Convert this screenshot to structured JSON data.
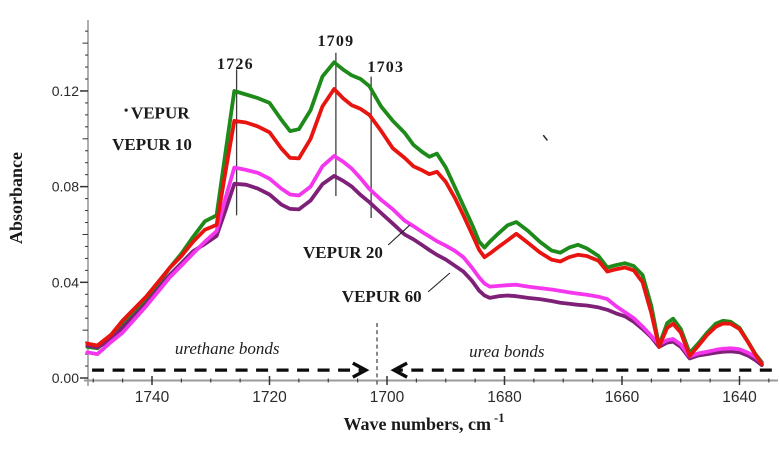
{
  "figure": {
    "background": "#ffffff",
    "axis_color": "#9b9b9b",
    "tick_color": "#333333",
    "text_color": "#1a1a1a"
  },
  "chart_data": {
    "type": "line",
    "title": "",
    "xlabel": {
      "text": "Wave numbers, cm",
      "superscript": "-1"
    },
    "ylabel": "Absorbance",
    "x_axis": {
      "reversed": true,
      "range": [
        1751,
        1633.5
      ],
      "major_ticks": [
        1740,
        1720,
        1700,
        1680,
        1660,
        1640
      ],
      "minor_step": 5
    },
    "y_axis": {
      "range": [
        0,
        0.148
      ],
      "major_ticks": [
        0,
        0.04,
        0.08,
        0.12
      ],
      "major_tick_labels": [
        "0.00",
        "0.04",
        "0.08",
        "0.12"
      ],
      "minor_step": 0.005,
      "grid": false
    },
    "legend": "inline curve labels",
    "x": [
      1751,
      1749.3,
      1747,
      1745,
      1743,
      1741,
      1739,
      1737,
      1735,
      1733,
      1731,
      1729,
      1727.5,
      1726,
      1724,
      1722,
      1720,
      1718,
      1716.5,
      1715,
      1713,
      1711,
      1709,
      1707.5,
      1706,
      1704.5,
      1703,
      1701,
      1699,
      1697,
      1695.5,
      1694,
      1692.8,
      1691.5,
      1690,
      1688.5,
      1687,
      1685.5,
      1684.3,
      1683.4,
      1682.5,
      1681,
      1679.5,
      1678,
      1676,
      1674,
      1672,
      1670.5,
      1669,
      1667.5,
      1666,
      1664,
      1662.5,
      1661,
      1659.5,
      1658,
      1656.5,
      1655,
      1653.7,
      1652.3,
      1651.3,
      1650,
      1648.5,
      1647,
      1645.5,
      1644,
      1642.8,
      1641.5,
      1640,
      1638.5,
      1637.3,
      1636.2
    ],
    "series": [
      {
        "name": "VEPUR",
        "color": "#1e8a1a",
        "values": [
          0.013,
          0.0124,
          0.017,
          0.022,
          0.027,
          0.033,
          0.039,
          0.046,
          0.052,
          0.059,
          0.0655,
          0.068,
          0.094,
          0.12,
          0.1185,
          0.117,
          0.115,
          0.108,
          0.1032,
          0.104,
          0.112,
          0.126,
          0.132,
          0.129,
          0.1265,
          0.125,
          0.122,
          0.1135,
          0.1075,
          0.1025,
          0.0975,
          0.0945,
          0.0925,
          0.0938,
          0.088,
          0.08,
          0.072,
          0.064,
          0.057,
          0.0545,
          0.057,
          0.0605,
          0.0638,
          0.0652,
          0.0615,
          0.057,
          0.0533,
          0.0524,
          0.0545,
          0.0557,
          0.0542,
          0.051,
          0.0462,
          0.0472,
          0.048,
          0.0468,
          0.043,
          0.03,
          0.0136,
          0.023,
          0.0248,
          0.0205,
          0.0105,
          0.0145,
          0.019,
          0.0228,
          0.0239,
          0.0235,
          0.021,
          0.015,
          0.01,
          0.0066
        ]
      },
      {
        "name": "VEPUR 10",
        "color": "#e81410",
        "values": [
          0.0144,
          0.0136,
          0.018,
          0.024,
          0.029,
          0.034,
          0.04,
          0.046,
          0.051,
          0.057,
          0.062,
          0.064,
          0.086,
          0.1075,
          0.1068,
          0.1052,
          0.1027,
          0.096,
          0.092,
          0.0918,
          0.1,
          0.1135,
          0.1208,
          0.117,
          0.114,
          0.1125,
          0.11,
          0.1033,
          0.096,
          0.092,
          0.0885,
          0.0868,
          0.0852,
          0.0862,
          0.082,
          0.0755,
          0.068,
          0.06,
          0.0535,
          0.0505,
          0.052,
          0.0548,
          0.0575,
          0.0603,
          0.0565,
          0.0525,
          0.0495,
          0.0487,
          0.0505,
          0.0515,
          0.051,
          0.049,
          0.0445,
          0.0455,
          0.0462,
          0.045,
          0.04,
          0.027,
          0.013,
          0.021,
          0.0227,
          0.019,
          0.0092,
          0.0135,
          0.018,
          0.0215,
          0.0228,
          0.0227,
          0.0205,
          0.0148,
          0.0098,
          0.0058
        ]
      },
      {
        "name": "VEPUR 20",
        "color": "#f437ef",
        "values": [
          0.0107,
          0.01,
          0.015,
          0.019,
          0.0245,
          0.03,
          0.036,
          0.042,
          0.047,
          0.052,
          0.057,
          0.0614,
          0.075,
          0.088,
          0.087,
          0.0858,
          0.0833,
          0.0792,
          0.0767,
          0.0763,
          0.08,
          0.0885,
          0.0928,
          0.0905,
          0.0875,
          0.0835,
          0.079,
          0.0745,
          0.0705,
          0.0658,
          0.0635,
          0.061,
          0.0592,
          0.0572,
          0.0553,
          0.0532,
          0.0505,
          0.046,
          0.042,
          0.0395,
          0.0382,
          0.0385,
          0.0388,
          0.039,
          0.0382,
          0.0376,
          0.037,
          0.0364,
          0.0358,
          0.0353,
          0.0348,
          0.034,
          0.033,
          0.03,
          0.0275,
          0.025,
          0.0215,
          0.0175,
          0.014,
          0.0158,
          0.0163,
          0.014,
          0.009,
          0.0103,
          0.011,
          0.0118,
          0.0122,
          0.0124,
          0.012,
          0.0105,
          0.0088,
          0.0062
        ]
      },
      {
        "name": "VEPUR 60",
        "color": "#7e2077",
        "values": [
          0.0136,
          0.0128,
          0.016,
          0.021,
          0.026,
          0.031,
          0.037,
          0.043,
          0.048,
          0.053,
          0.056,
          0.0594,
          0.07,
          0.0812,
          0.0808,
          0.0792,
          0.0767,
          0.0725,
          0.0707,
          0.0705,
          0.0742,
          0.081,
          0.0845,
          0.0825,
          0.08,
          0.0765,
          0.0735,
          0.069,
          0.0645,
          0.06,
          0.058,
          0.0555,
          0.0535,
          0.0515,
          0.0495,
          0.047,
          0.0445,
          0.0405,
          0.0365,
          0.0345,
          0.0335,
          0.0342,
          0.0345,
          0.0342,
          0.0335,
          0.033,
          0.0322,
          0.0315,
          0.031,
          0.0306,
          0.0303,
          0.0295,
          0.0285,
          0.027,
          0.0258,
          0.0235,
          0.0205,
          0.017,
          0.013,
          0.0148,
          0.0152,
          0.013,
          0.0082,
          0.0094,
          0.01,
          0.0106,
          0.011,
          0.0111,
          0.0108,
          0.0093,
          0.0075,
          0.0054
        ]
      }
    ],
    "series_labels": [
      {
        "text": "VEPUR",
        "w": 1738.6,
        "abs": 0.111
      },
      {
        "text": "VEPUR 10",
        "w": 1740.0,
        "abs": 0.0978
      },
      {
        "text": "VEPUR 20",
        "w": 1707.5,
        "abs": 0.0527,
        "leader": {
          "from_w": 1699.8,
          "from_abs": 0.0556,
          "to_w": 1696.1,
          "to_abs": 0.064
        }
      },
      {
        "text": "VEPUR 60",
        "w": 1700.9,
        "abs": 0.0343,
        "leader": {
          "from_w": 1693.0,
          "from_abs": 0.036,
          "to_w": 1689.3,
          "to_abs": 0.0439
        }
      }
    ],
    "peak_annotations": [
      {
        "label": "1726",
        "line_w": 1725.6,
        "line_abs_bottom": 0.068,
        "line_abs_top": 0.129,
        "label_w": 1725.8,
        "label_abs": 0.1317
      },
      {
        "label": "1709",
        "line_w": 1708.7,
        "line_abs_bottom": 0.0761,
        "line_abs_top": 0.136,
        "label_w": 1708.7,
        "label_abs": 0.1413
      },
      {
        "label": "1703",
        "line_w": 1702.7,
        "line_abs_bottom": 0.0669,
        "line_abs_top": 0.126,
        "label_w": 1700.2,
        "label_abs": 0.1304
      }
    ],
    "region_annotations": [
      {
        "label": "urethane bonds",
        "label_w": 1727.2,
        "label_abs": 0.0125,
        "arrow": {
          "tail_w": 1750.2,
          "head_w": 1703.6,
          "abs": 0.0033,
          "direction": "right"
        }
      },
      {
        "label": "urea bonds",
        "label_w": 1679.6,
        "label_abs": 0.0113,
        "arrow": {
          "tail_w": 1634.5,
          "head_w": 1698.8,
          "abs": 0.0033,
          "direction": "left"
        }
      }
    ],
    "divider": {
      "w": 1701.7,
      "abs_top": 0.023,
      "abs_bottom": -0.0033
    },
    "stray_marks": [
      {
        "shape": "tick",
        "from_w": 1673.4,
        "from_abs": 0.1015,
        "to_w": 1672.7,
        "to_abs": 0.0993
      },
      {
        "shape": "dot",
        "w": 1744.4,
        "abs": 0.112
      }
    ]
  }
}
